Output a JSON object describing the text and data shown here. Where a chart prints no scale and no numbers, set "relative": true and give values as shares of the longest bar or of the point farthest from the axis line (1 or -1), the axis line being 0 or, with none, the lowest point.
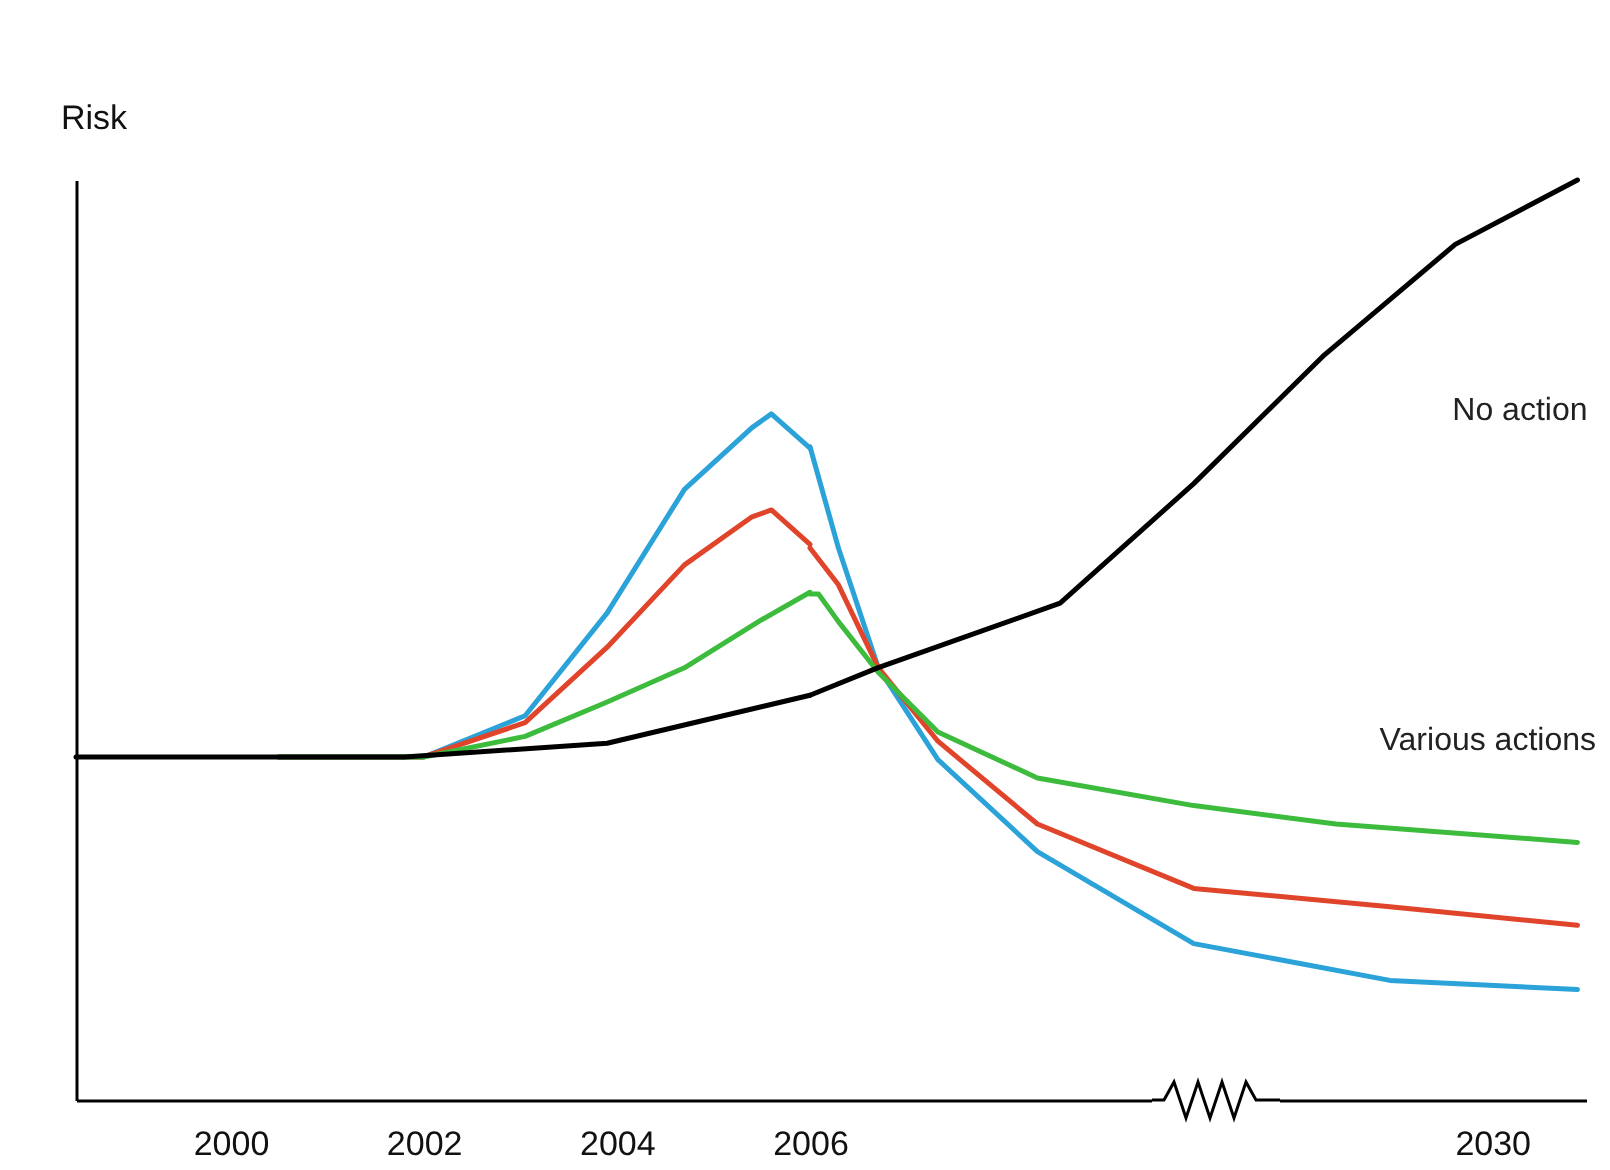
{
  "chart_data": [
    {
      "type": "line",
      "ylabel": "Risk",
      "relative": true,
      "xlim": [
        1998.4,
        2006
      ],
      "xticks": [
        2000,
        2002,
        2004
      ],
      "tick_labels": "x",
      "grid": false,
      "marker": "none",
      "line_style": "solid",
      "series": [
        {
          "color": "#2ba3d9",
          "x": [
            2000.5,
            2002,
            2003.05,
            2003.9,
            2004.7,
            2005.4,
            2005.6,
            2006
          ],
          "values": [
            0.5,
            0.5,
            0.56,
            0.71,
            0.89,
            0.98,
            1,
            0.95
          ]
        },
        {
          "color": "#e0452c",
          "x": [
            2000.5,
            2002,
            2003.05,
            2003.9,
            2004.7,
            2005.4,
            2005.6,
            2006
          ],
          "values": [
            0.5,
            0.5,
            0.55,
            0.66,
            0.78,
            0.85,
            0.86,
            0.81
          ]
        },
        {
          "color": "#3dbb3d",
          "x": [
            2000.5,
            2002,
            2003.05,
            2003.9,
            2004.7,
            2005.5,
            2006
          ],
          "values": [
            0.5,
            0.5,
            0.53,
            0.58,
            0.63,
            0.7,
            0.74
          ]
        },
        {
          "color": "#000000",
          "x": [
            1998.4,
            2001.8,
            2003.9,
            2006
          ],
          "values": [
            0.5,
            0.5,
            0.52,
            0.59
          ]
        }
      ]
    },
    {
      "type": "line",
      "relative": true,
      "xlim": [
        2006,
        2033.3
      ],
      "xticks": [
        2006,
        2030
      ],
      "tick_labels": "x",
      "grid": false,
      "marker": "none",
      "line_style": "solid",
      "annotations": [
        "Various actions"
      ],
      "series": [
        {
          "color": "#2ba3d9",
          "x": [
            2006,
            2007,
            2008.4,
            2010.5,
            2014,
            2019.5,
            2026.4,
            2033
          ],
          "values": [
            0.71,
            0.6,
            0.47,
            0.37,
            0.27,
            0.17,
            0.13,
            0.12
          ]
        },
        {
          "color": "#e0452c",
          "x": [
            2006,
            2007,
            2008.4,
            2010.5,
            2014,
            2019.5,
            2026.4,
            2033
          ],
          "values": [
            0.6,
            0.56,
            0.47,
            0.39,
            0.3,
            0.23,
            0.21,
            0.19
          ]
        },
        {
          "color": "#3dbb3d",
          "x": [
            2006,
            2006.3,
            2007,
            2008.4,
            2010.5,
            2014,
            2019.5,
            2024.5,
            2033
          ],
          "values": [
            0.55,
            0.55,
            0.52,
            0.465,
            0.4,
            0.35,
            0.32,
            0.3,
            0.28
          ]
        },
        {
          "name": "No action",
          "color": "#000000",
          "x": [
            2006,
            2008.4,
            2014.8,
            2019.5,
            2024.1,
            2028.7,
            2033
          ],
          "values": [
            0.44,
            0.47,
            0.54,
            0.67,
            0.81,
            0.93,
            1
          ]
        }
      ]
    }
  ]
}
